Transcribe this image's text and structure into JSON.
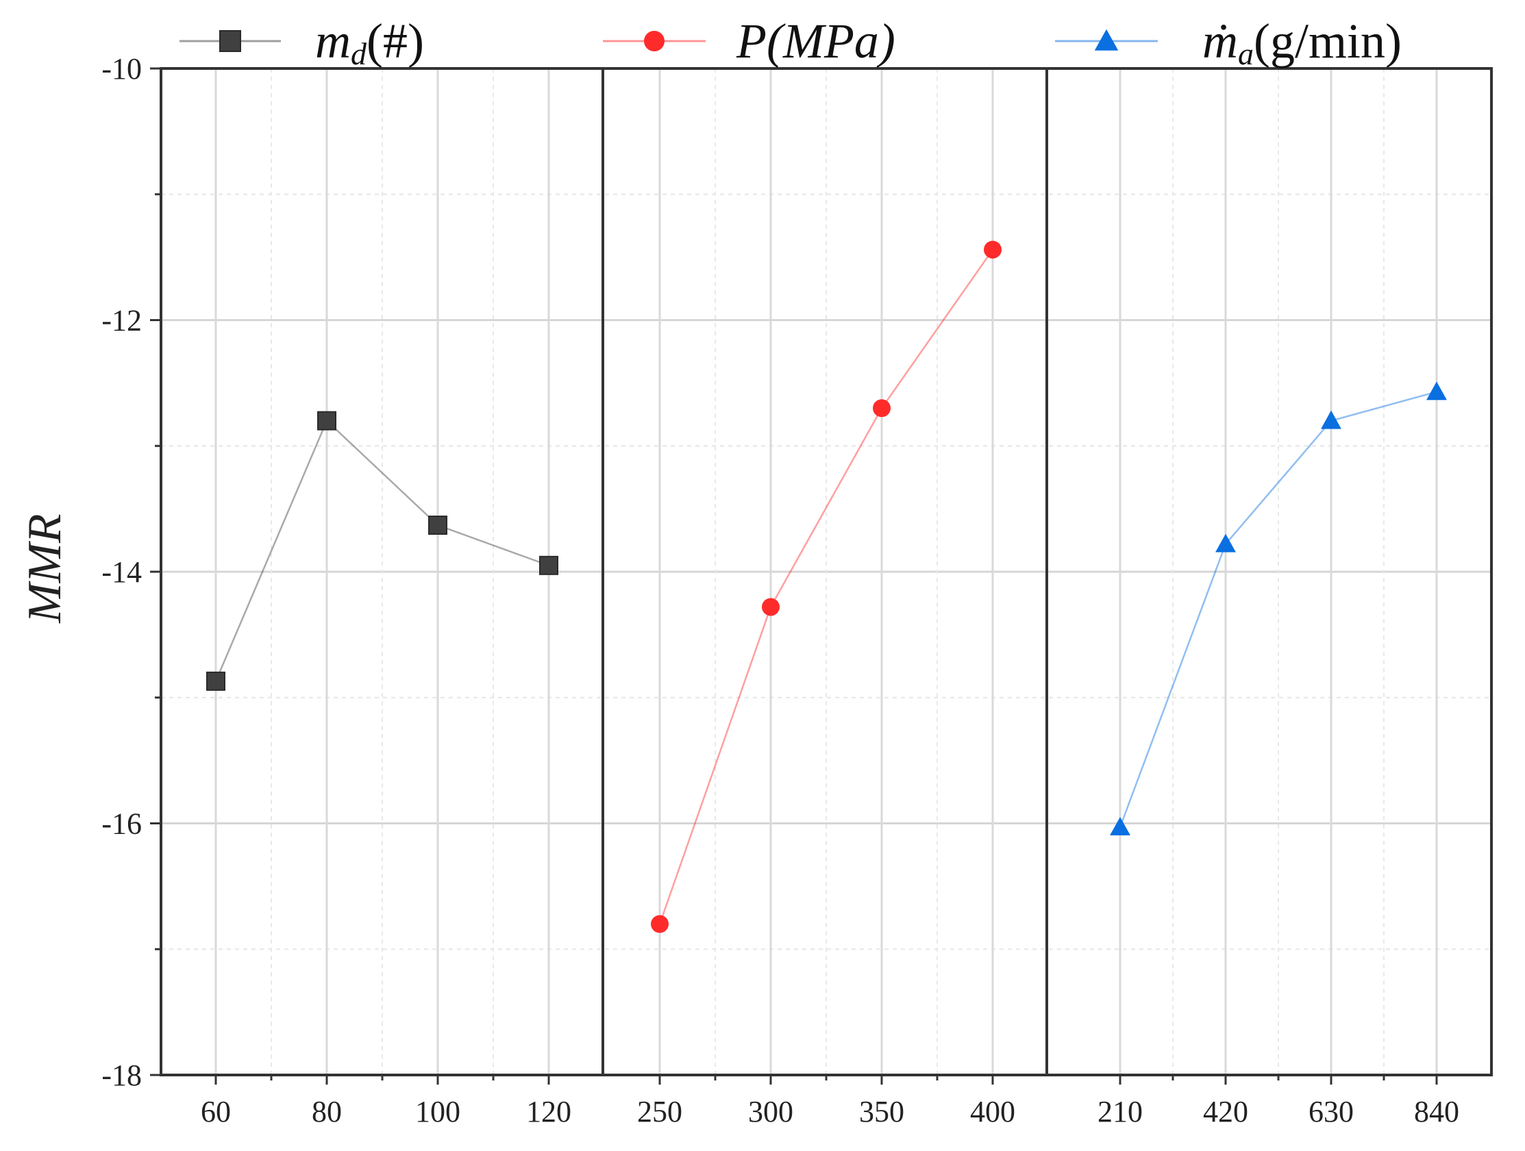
{
  "chart_data": {
    "type": "line",
    "ylabel": "MMR",
    "ylim": [
      -18,
      -10
    ],
    "yticks": [
      -10,
      -12,
      -14,
      -16,
      -18
    ],
    "ytick_labels": [
      "-10",
      "-12",
      "-14",
      "-16",
      "-18"
    ],
    "grid": true,
    "legend_position": "top",
    "panels": [
      {
        "name": "md",
        "legend": {
          "var": "m",
          "sub": "d",
          "rest": "(#)"
        },
        "color": "#404040",
        "marker": "square",
        "categories": [
          "60",
          "80",
          "100",
          "120"
        ],
        "values": [
          -14.87,
          -12.8,
          -13.63,
          -13.95
        ]
      },
      {
        "name": "P",
        "legend": {
          "var": "P",
          "sub": "",
          "rest": "(MPa)"
        },
        "color": "#ff2b2b",
        "marker": "circle",
        "categories": [
          "250",
          "300",
          "350",
          "400"
        ],
        "values": [
          -16.8,
          -14.28,
          -12.7,
          -11.44
        ]
      },
      {
        "name": "ma",
        "legend": {
          "var": "ṁ",
          "sub": "a",
          "rest": "(g/min)"
        },
        "color": "#0a6fe0",
        "marker": "triangle",
        "categories": [
          "210",
          "420",
          "630",
          "840"
        ],
        "values": [
          -16.03,
          -13.78,
          -12.8,
          -12.57
        ]
      }
    ]
  }
}
